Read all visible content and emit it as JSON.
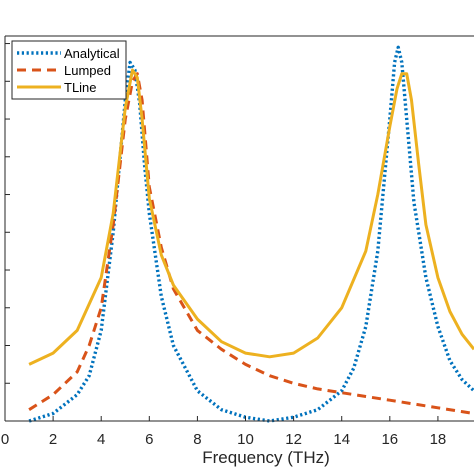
{
  "chart_data": {
    "type": "line",
    "xlabel": "Frequency (THz)",
    "ylabel": "",
    "xlim": [
      0,
      19.5
    ],
    "ylim": [
      0,
      1.02
    ],
    "xticks": [
      0,
      2,
      4,
      6,
      8,
      10,
      12,
      14,
      16,
      18
    ],
    "grid": false,
    "legend_position": "top-left",
    "series": [
      {
        "name": "Analytical",
        "style": "dotted",
        "color": "#0072BD",
        "x": [
          1.0,
          2.0,
          3.0,
          3.5,
          4.0,
          4.5,
          5.0,
          5.2,
          5.4,
          5.6,
          5.8,
          6.0,
          6.5,
          7.0,
          8.0,
          9.0,
          10.0,
          11.0,
          12.0,
          13.0,
          14.0,
          14.5,
          15.0,
          15.5,
          16.0,
          16.2,
          16.35,
          16.5,
          16.7,
          17.0,
          17.5,
          18.0,
          18.5,
          19.0,
          19.5
        ],
        "y": [
          0.0,
          0.02,
          0.07,
          0.12,
          0.24,
          0.5,
          0.85,
          0.95,
          0.93,
          0.84,
          0.68,
          0.55,
          0.33,
          0.2,
          0.08,
          0.03,
          0.01,
          0.0,
          0.01,
          0.03,
          0.08,
          0.14,
          0.25,
          0.45,
          0.8,
          0.95,
          0.99,
          0.95,
          0.8,
          0.58,
          0.38,
          0.25,
          0.16,
          0.11,
          0.08
        ]
      },
      {
        "name": "Lumped",
        "style": "dashed",
        "color": "#D95319",
        "x": [
          1.0,
          2.0,
          3.0,
          3.5,
          4.0,
          4.5,
          5.0,
          5.3,
          5.5,
          5.7,
          6.0,
          6.5,
          7.0,
          8.0,
          9.0,
          10.0,
          11.0,
          12.0,
          13.0,
          14.0,
          15.0,
          16.0,
          17.0,
          18.0,
          19.0,
          19.5
        ],
        "y": [
          0.03,
          0.07,
          0.13,
          0.2,
          0.3,
          0.52,
          0.8,
          0.9,
          0.92,
          0.85,
          0.62,
          0.46,
          0.35,
          0.24,
          0.19,
          0.15,
          0.12,
          0.1,
          0.085,
          0.075,
          0.065,
          0.055,
          0.045,
          0.035,
          0.025,
          0.02
        ]
      },
      {
        "name": "TLine",
        "style": "solid",
        "color": "#EDB120",
        "x": [
          1.0,
          2.0,
          3.0,
          4.0,
          4.5,
          5.0,
          5.3,
          5.5,
          5.7,
          6.0,
          6.5,
          7.0,
          8.0,
          9.0,
          10.0,
          11.0,
          12.0,
          13.0,
          14.0,
          15.0,
          15.5,
          16.0,
          16.3,
          16.5,
          16.7,
          16.9,
          17.2,
          17.5,
          18.0,
          18.5,
          19.0,
          19.5
        ],
        "y": [
          0.15,
          0.18,
          0.24,
          0.38,
          0.55,
          0.83,
          0.93,
          0.91,
          0.8,
          0.59,
          0.44,
          0.36,
          0.27,
          0.21,
          0.18,
          0.17,
          0.18,
          0.22,
          0.3,
          0.45,
          0.6,
          0.78,
          0.88,
          0.92,
          0.92,
          0.85,
          0.68,
          0.52,
          0.38,
          0.29,
          0.23,
          0.19
        ]
      }
    ]
  }
}
